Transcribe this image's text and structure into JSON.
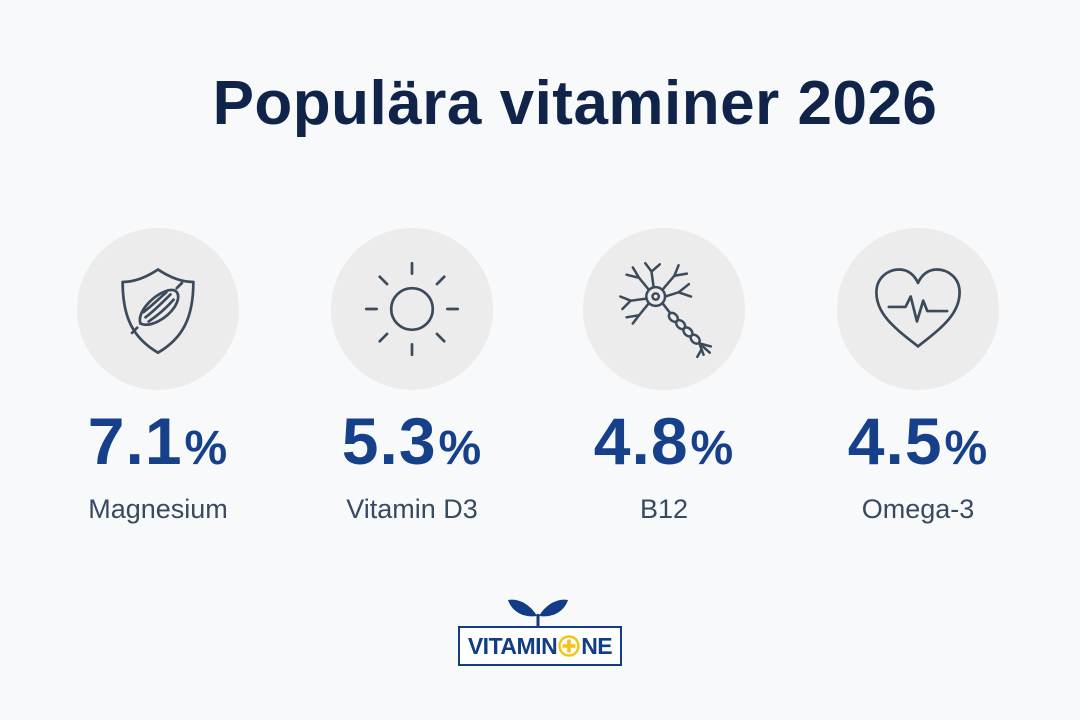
{
  "title": "Populära vitaminer 2026",
  "colors": {
    "title": "#0f2448",
    "value": "#16418a",
    "label": "#394960",
    "icon_circle": "#ececec",
    "icon_stroke": "#3c4b5c",
    "logo_blue": "#123d86",
    "logo_yellow": "#f3c318"
  },
  "stats": [
    {
      "value": "7.1",
      "unit": "%",
      "label": "Magnesium",
      "icon": "muscle-shield-icon"
    },
    {
      "value": "5.3",
      "unit": "%",
      "label": "Vitamin D3",
      "icon": "sun-icon"
    },
    {
      "value": "4.8",
      "unit": "%",
      "label": "B12",
      "icon": "neuron-icon"
    },
    {
      "value": "4.5",
      "unit": "%",
      "label": "Omega-3",
      "icon": "heart-pulse-icon"
    }
  ],
  "logo": {
    "text_left": "VITAMIN",
    "text_right": "NE",
    "icons": [
      "leaves-icon",
      "plus-circle-icon"
    ]
  }
}
